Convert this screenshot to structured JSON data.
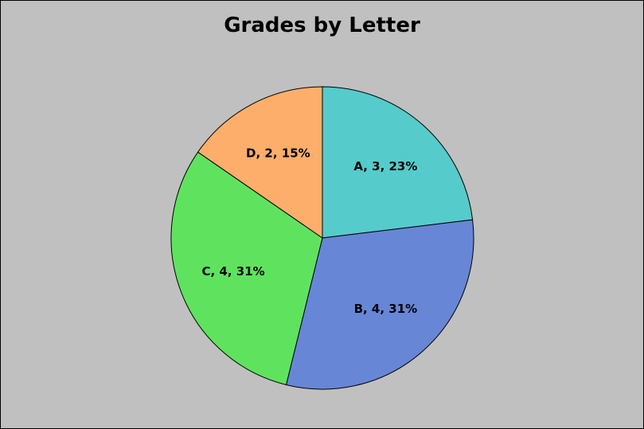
{
  "chart_data": {
    "type": "pie",
    "title": "Grades by Letter",
    "slices": [
      {
        "category": "A",
        "value": 3,
        "percent": 23,
        "label": "A, 3, 23%",
        "color": "#56cbcb"
      },
      {
        "category": "B",
        "value": 4,
        "percent": 31,
        "label": "B, 4, 31%",
        "color": "#6786d6"
      },
      {
        "category": "C",
        "value": 4,
        "percent": 31,
        "label": "C, 4, 31%",
        "color": "#5fe35f"
      },
      {
        "category": "D",
        "value": 2,
        "percent": 15,
        "label": "D, 2, 15%",
        "color": "#fdae6b"
      }
    ],
    "legend": "none",
    "data_labels": "category, value, percentage"
  },
  "colors": {
    "background": "#c0c0c0",
    "border": "#000000"
  }
}
